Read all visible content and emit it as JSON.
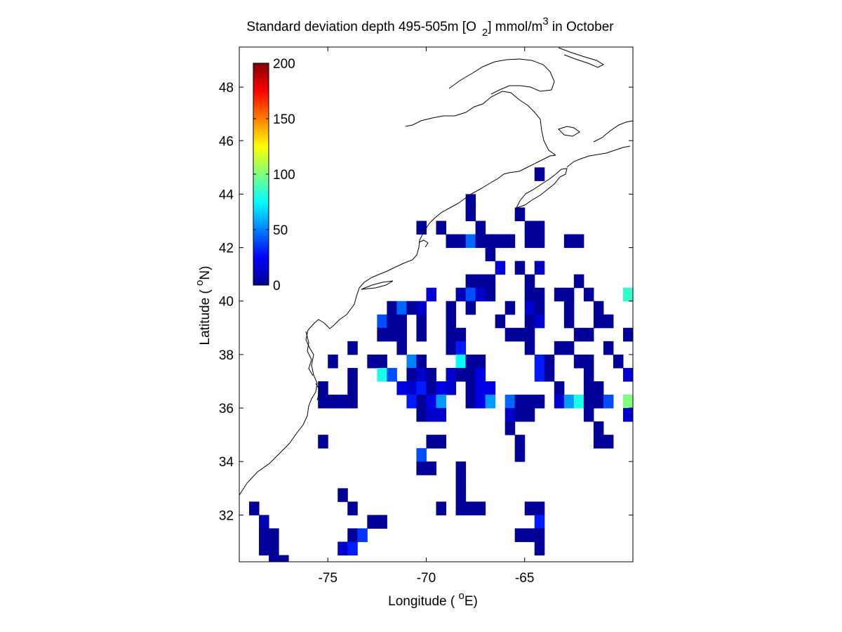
{
  "chart_data": {
    "type": "heatmap",
    "title": {
      "main": "Standard deviation depth 495-505m [O",
      "sub": "2",
      "mid": "] mmol/m",
      "sup": "3",
      "end": " in October"
    },
    "xlabel": {
      "pre": "Longitude ( ",
      "sup": "o",
      "post": "E)"
    },
    "ylabel": {
      "pre": "Latitude ( ",
      "sup": "o",
      "post": "N)"
    },
    "xlim": [
      -79.5,
      -59.5
    ],
    "ylim": [
      30.25,
      49.5
    ],
    "xticks": [
      -75,
      -70,
      -65
    ],
    "xtick_labels": [
      "-75",
      "-70",
      "-65"
    ],
    "yticks": [
      32,
      34,
      36,
      38,
      40,
      42,
      44,
      46,
      48
    ],
    "ytick_labels": [
      "32",
      "34",
      "36",
      "38",
      "40",
      "42",
      "44",
      "46",
      "48"
    ],
    "colorbar": {
      "colormap": "jet",
      "range": [
        0,
        200
      ],
      "ticks": [
        0,
        50,
        100,
        150,
        200
      ],
      "tick_labels": [
        "0",
        "50",
        "100",
        "150",
        "200"
      ],
      "placement": "top-left inside axes"
    },
    "cell_size_deg": 0.5,
    "cells": [
      [
        -64.25,
        44.75,
        5
      ],
      [
        -65.25,
        43.25,
        5
      ],
      [
        -67.75,
        43.75,
        5
      ],
      [
        -67.75,
        43.25,
        5
      ],
      [
        -70.25,
        42.75,
        5
      ],
      [
        -69.25,
        42.75,
        5
      ],
      [
        -67.25,
        42.75,
        5
      ],
      [
        -64.75,
        42.75,
        5
      ],
      [
        -64.25,
        42.75,
        5
      ],
      [
        -68.75,
        42.25,
        5
      ],
      [
        -68.25,
        42.25,
        5
      ],
      [
        -67.75,
        42.25,
        45
      ],
      [
        -67.25,
        42.25,
        5
      ],
      [
        -66.75,
        42.25,
        5
      ],
      [
        -66.25,
        42.25,
        5
      ],
      [
        -65.75,
        42.25,
        5
      ],
      [
        -64.75,
        42.25,
        5
      ],
      [
        -64.25,
        42.25,
        5
      ],
      [
        -62.75,
        42.25,
        5
      ],
      [
        -62.25,
        42.25,
        5
      ],
      [
        -66.75,
        41.75,
        5
      ],
      [
        -66.25,
        41.25,
        18
      ],
      [
        -65.25,
        41.25,
        5
      ],
      [
        -64.25,
        41.25,
        12
      ],
      [
        -67.75,
        40.75,
        5
      ],
      [
        -67.25,
        40.75,
        5
      ],
      [
        -66.75,
        40.75,
        5
      ],
      [
        -64.75,
        40.75,
        5
      ],
      [
        -62.25,
        40.75,
        5
      ],
      [
        -69.75,
        40.25,
        18
      ],
      [
        -68.25,
        40.25,
        10
      ],
      [
        -67.75,
        40.25,
        40
      ],
      [
        -67.25,
        40.25,
        15
      ],
      [
        -66.75,
        40.25,
        5
      ],
      [
        -64.75,
        40.25,
        5
      ],
      [
        -64.25,
        40.25,
        5
      ],
      [
        -63.25,
        40.25,
        5
      ],
      [
        -62.75,
        40.25,
        5
      ],
      [
        -61.75,
        40.25,
        5
      ],
      [
        -59.75,
        40.25,
        85
      ],
      [
        -71.75,
        39.75,
        5
      ],
      [
        -71.25,
        39.75,
        45
      ],
      [
        -70.75,
        39.75,
        5
      ],
      [
        -70.25,
        39.75,
        15
      ],
      [
        -68.75,
        39.75,
        5
      ],
      [
        -67.75,
        39.75,
        5
      ],
      [
        -65.75,
        39.75,
        5
      ],
      [
        -64.75,
        39.75,
        15
      ],
      [
        -64.25,
        39.75,
        5
      ],
      [
        -62.75,
        39.75,
        5
      ],
      [
        -61.25,
        39.75,
        5
      ],
      [
        -72.25,
        39.25,
        40
      ],
      [
        -71.75,
        39.25,
        5
      ],
      [
        -71.25,
        39.25,
        5
      ],
      [
        -70.25,
        39.25,
        5
      ],
      [
        -68.75,
        39.25,
        5
      ],
      [
        -66.25,
        39.25,
        5
      ],
      [
        -64.75,
        39.25,
        5
      ],
      [
        -64.25,
        39.25,
        15
      ],
      [
        -62.75,
        39.25,
        5
      ],
      [
        -61.25,
        39.25,
        5
      ],
      [
        -60.75,
        39.25,
        5
      ],
      [
        -72.25,
        38.75,
        5
      ],
      [
        -71.75,
        38.75,
        5
      ],
      [
        -71.25,
        38.75,
        5
      ],
      [
        -70.25,
        38.75,
        5
      ],
      [
        -68.75,
        38.75,
        5
      ],
      [
        -68.25,
        38.75,
        5
      ],
      [
        -65.75,
        38.75,
        5
      ],
      [
        -65.25,
        38.75,
        5
      ],
      [
        -64.75,
        38.75,
        5
      ],
      [
        -62.25,
        38.75,
        5
      ],
      [
        -61.75,
        38.75,
        5
      ],
      [
        -59.75,
        38.75,
        5
      ],
      [
        -73.75,
        38.25,
        5
      ],
      [
        -71.25,
        38.25,
        5
      ],
      [
        -68.75,
        38.25,
        5
      ],
      [
        -68.25,
        38.25,
        30
      ],
      [
        -64.75,
        38.25,
        5
      ],
      [
        -63.25,
        38.25,
        5
      ],
      [
        -62.75,
        38.25,
        5
      ],
      [
        -60.75,
        38.25,
        5
      ],
      [
        -74.75,
        37.75,
        5
      ],
      [
        -72.75,
        37.75,
        5
      ],
      [
        -72.25,
        37.75,
        5
      ],
      [
        -70.75,
        37.75,
        50
      ],
      [
        -70.25,
        37.75,
        5
      ],
      [
        -68.25,
        37.75,
        75
      ],
      [
        -67.75,
        37.75,
        5
      ],
      [
        -67.25,
        37.75,
        5
      ],
      [
        -64.25,
        37.75,
        30
      ],
      [
        -63.75,
        37.75,
        5
      ],
      [
        -62.25,
        37.75,
        5
      ],
      [
        -61.75,
        37.75,
        5
      ],
      [
        -60.25,
        37.75,
        5
      ],
      [
        -73.75,
        37.25,
        5
      ],
      [
        -72.25,
        37.25,
        80
      ],
      [
        -71.75,
        37.25,
        40
      ],
      [
        -70.75,
        37.25,
        5
      ],
      [
        -70.25,
        37.25,
        15
      ],
      [
        -69.75,
        37.25,
        5
      ],
      [
        -68.75,
        37.25,
        15
      ],
      [
        -68.25,
        37.25,
        5
      ],
      [
        -67.75,
        37.25,
        5
      ],
      [
        -67.25,
        37.25,
        20
      ],
      [
        -64.25,
        37.25,
        30
      ],
      [
        -63.75,
        37.25,
        5
      ],
      [
        -61.75,
        37.25,
        5
      ],
      [
        -59.75,
        37.25,
        15
      ],
      [
        -75.25,
        36.75,
        5
      ],
      [
        -73.75,
        36.75,
        5
      ],
      [
        -71.25,
        36.75,
        20
      ],
      [
        -70.75,
        36.75,
        15
      ],
      [
        -70.25,
        36.75,
        30
      ],
      [
        -69.75,
        36.75,
        5
      ],
      [
        -69.25,
        36.75,
        20
      ],
      [
        -68.75,
        36.75,
        15
      ],
      [
        -67.75,
        36.75,
        5
      ],
      [
        -67.25,
        36.75,
        20
      ],
      [
        -66.75,
        36.75,
        20
      ],
      [
        -63.25,
        36.75,
        5
      ],
      [
        -61.75,
        36.75,
        5
      ],
      [
        -61.25,
        36.75,
        5
      ],
      [
        -75.25,
        36.25,
        5
      ],
      [
        -74.75,
        36.25,
        5
      ],
      [
        -74.25,
        36.25,
        5
      ],
      [
        -73.75,
        36.25,
        5
      ],
      [
        -70.75,
        36.25,
        30
      ],
      [
        -70.25,
        36.25,
        5
      ],
      [
        -69.75,
        36.25,
        20
      ],
      [
        -69.25,
        36.25,
        55
      ],
      [
        -67.75,
        36.25,
        5
      ],
      [
        -67.25,
        36.25,
        20
      ],
      [
        -66.75,
        36.25,
        55
      ],
      [
        -65.75,
        36.25,
        45
      ],
      [
        -65.25,
        36.25,
        5
      ],
      [
        -64.75,
        36.25,
        5
      ],
      [
        -64.25,
        36.25,
        5
      ],
      [
        -63.25,
        36.25,
        15
      ],
      [
        -62.75,
        36.25,
        55
      ],
      [
        -62.25,
        36.25,
        80
      ],
      [
        -61.75,
        36.25,
        5
      ],
      [
        -61.25,
        36.25,
        5
      ],
      [
        -60.75,
        36.25,
        40
      ],
      [
        -59.75,
        36.25,
        100
      ],
      [
        -70.25,
        35.75,
        5
      ],
      [
        -69.75,
        35.75,
        15
      ],
      [
        -69.25,
        35.75,
        15
      ],
      [
        -65.75,
        35.75,
        15
      ],
      [
        -65.25,
        35.75,
        5
      ],
      [
        -64.75,
        35.75,
        5
      ],
      [
        -61.75,
        35.75,
        5
      ],
      [
        -59.75,
        35.75,
        15
      ],
      [
        -65.75,
        35.25,
        5
      ],
      [
        -61.25,
        35.25,
        5
      ],
      [
        -75.25,
        34.75,
        5
      ],
      [
        -69.75,
        34.75,
        5
      ],
      [
        -69.25,
        34.75,
        5
      ],
      [
        -65.25,
        34.75,
        5
      ],
      [
        -61.25,
        34.75,
        5
      ],
      [
        -60.75,
        34.75,
        5
      ],
      [
        -70.25,
        34.25,
        40
      ],
      [
        -65.25,
        34.25,
        5
      ],
      [
        -70.25,
        33.75,
        5
      ],
      [
        -69.75,
        33.75,
        5
      ],
      [
        -68.25,
        33.75,
        5
      ],
      [
        -68.25,
        33.25,
        5
      ],
      [
        -68.25,
        32.75,
        5
      ],
      [
        -74.25,
        32.75,
        5
      ],
      [
        -78.75,
        32.25,
        5
      ],
      [
        -73.75,
        32.25,
        5
      ],
      [
        -69.25,
        32.25,
        5
      ],
      [
        -68.25,
        32.25,
        5
      ],
      [
        -67.75,
        32.25,
        5
      ],
      [
        -67.25,
        32.25,
        5
      ],
      [
        -64.75,
        32.25,
        5
      ],
      [
        -64.25,
        32.25,
        5
      ],
      [
        -78.25,
        31.75,
        10
      ],
      [
        -72.75,
        31.75,
        5
      ],
      [
        -72.25,
        31.75,
        5
      ],
      [
        -64.25,
        31.75,
        30
      ],
      [
        -78.25,
        31.25,
        5
      ],
      [
        -77.75,
        31.25,
        5
      ],
      [
        -73.75,
        31.25,
        5
      ],
      [
        -73.25,
        31.25,
        35
      ],
      [
        -64.75,
        31.25,
        5
      ],
      [
        -64.25,
        31.25,
        5
      ],
      [
        -65.25,
        31.25,
        5
      ],
      [
        -78.25,
        30.75,
        5
      ],
      [
        -77.75,
        30.75,
        5
      ],
      [
        -74.25,
        30.75,
        15
      ],
      [
        -73.75,
        30.75,
        30
      ],
      [
        -64.25,
        30.75,
        5
      ],
      [
        -77.75,
        30.25,
        5
      ],
      [
        -77.25,
        30.25,
        5
      ]
    ]
  }
}
